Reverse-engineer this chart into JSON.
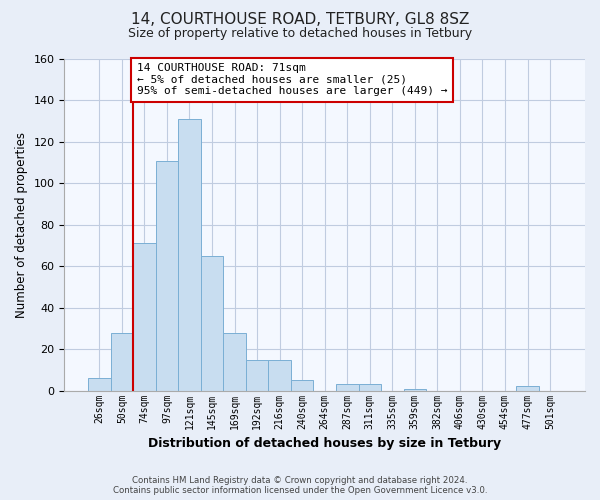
{
  "title1": "14, COURTHOUSE ROAD, TETBURY, GL8 8SZ",
  "title2": "Size of property relative to detached houses in Tetbury",
  "xlabel": "Distribution of detached houses by size in Tetbury",
  "ylabel": "Number of detached properties",
  "bin_labels": [
    "26sqm",
    "50sqm",
    "74sqm",
    "97sqm",
    "121sqm",
    "145sqm",
    "169sqm",
    "192sqm",
    "216sqm",
    "240sqm",
    "264sqm",
    "287sqm",
    "311sqm",
    "335sqm",
    "359sqm",
    "382sqm",
    "406sqm",
    "430sqm",
    "454sqm",
    "477sqm",
    "501sqm"
  ],
  "bar_heights": [
    6,
    28,
    71,
    111,
    131,
    65,
    28,
    15,
    15,
    5,
    0,
    3,
    3,
    0,
    1,
    0,
    0,
    0,
    0,
    2,
    0
  ],
  "bar_color": "#c8ddf0",
  "bar_edge_color": "#7aafd4",
  "vline_index": 2,
  "vline_color": "#cc0000",
  "annotation_line1": "14 COURTHOUSE ROAD: 71sqm",
  "annotation_line2": "← 5% of detached houses are smaller (25)",
  "annotation_line3": "95% of semi-detached houses are larger (449) →",
  "annotation_box_color": "#ffffff",
  "annotation_box_edge": "#cc0000",
  "ylim": [
    0,
    160
  ],
  "yticks": [
    0,
    20,
    40,
    60,
    80,
    100,
    120,
    140,
    160
  ],
  "footer1": "Contains HM Land Registry data © Crown copyright and database right 2024.",
  "footer2": "Contains public sector information licensed under the Open Government Licence v3.0.",
  "bg_color": "#e8eef8",
  "plot_bg_color": "#f4f8ff",
  "grid_color": "#c0cce0"
}
